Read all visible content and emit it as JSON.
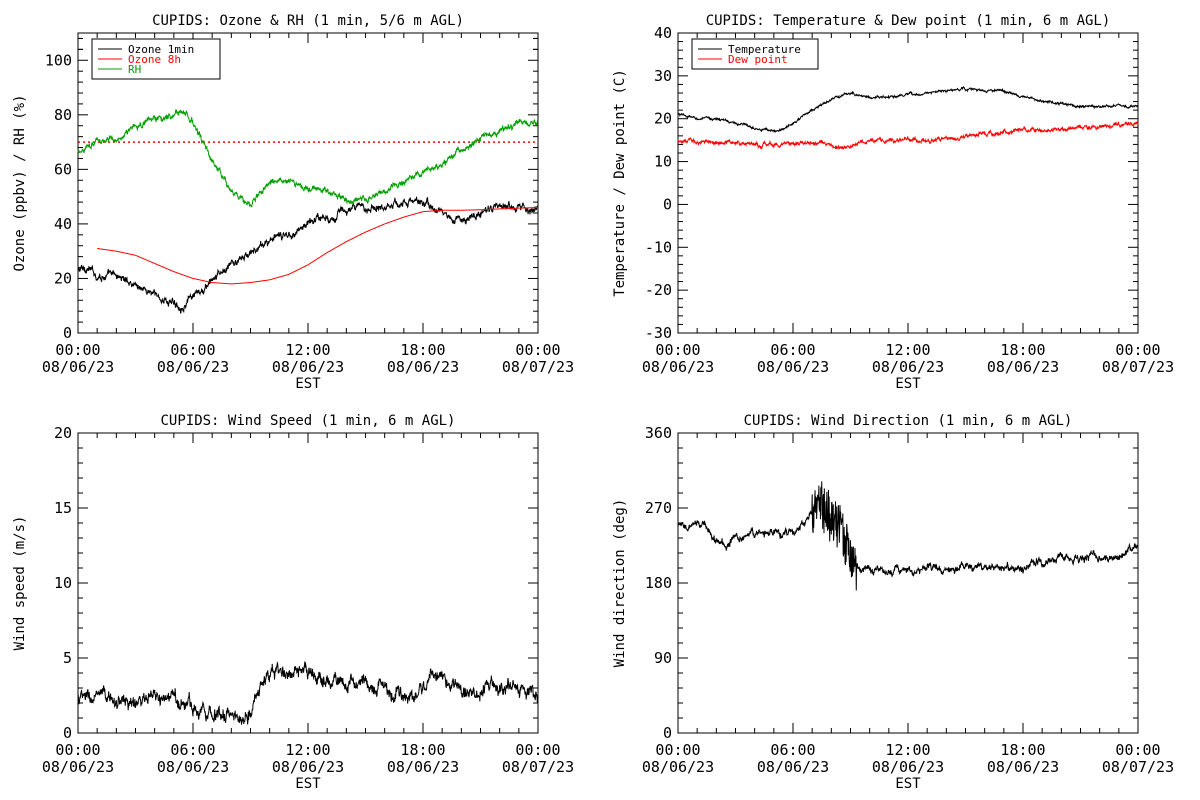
{
  "chart_data": [
    {
      "type": "line",
      "title": "CUPIDS: Ozone & RH (1 min, 5/6 m AGL)",
      "xlabel": "EST",
      "ylabel": "Ozone (ppbv) / RH (%)",
      "xlim_hours": [
        0,
        24
      ],
      "ylim": [
        0,
        110
      ],
      "yticks": [
        0,
        20,
        40,
        60,
        80,
        100
      ],
      "xtick_labels": [
        [
          "00:00",
          "08/06/23"
        ],
        [
          "06:00",
          "08/06/23"
        ],
        [
          "12:00",
          "08/06/23"
        ],
        [
          "18:00",
          "08/06/23"
        ],
        [
          "00:00",
          "08/07/23"
        ]
      ],
      "legend": [
        {
          "name": "Ozone 1min",
          "color": "#000000"
        },
        {
          "name": "Ozone 8h",
          "color": "#ff0000"
        },
        {
          "name": "RH",
          "color": "#00a000"
        }
      ],
      "reference_line": {
        "y": 70,
        "color": "#ff0000",
        "style": "dotted"
      },
      "series": [
        {
          "name": "Ozone 1min",
          "color": "#000000",
          "noise": 1.5,
          "x": [
            0,
            0.5,
            1,
            2,
            3,
            4,
            4.5,
            5,
            5.5,
            6,
            6.5,
            7,
            8,
            9,
            10,
            11,
            12,
            12.5,
            13,
            14,
            15,
            16,
            17,
            18,
            18.5,
            19,
            19.5,
            20,
            21,
            22,
            22.5,
            23,
            24
          ],
          "y": [
            23,
            24,
            21,
            21,
            18,
            14,
            12,
            11,
            10,
            13,
            15,
            19,
            25,
            29,
            34,
            36,
            40,
            43,
            42,
            45,
            46,
            47,
            48,
            48,
            46,
            44,
            42,
            41,
            44,
            46,
            47,
            47,
            45
          ]
        },
        {
          "name": "Ozone 8h",
          "color": "#ff0000",
          "noise": 0,
          "x": [
            1,
            2,
            3,
            4,
            5,
            6,
            7,
            8,
            9,
            10,
            11,
            12,
            13,
            14,
            15,
            16,
            17,
            18,
            19,
            20,
            21,
            22,
            23,
            24
          ],
          "y": [
            31,
            30,
            28.5,
            25.5,
            22.5,
            20,
            18.5,
            18,
            18.5,
            19.5,
            21.5,
            25,
            29.5,
            33.5,
            37,
            40,
            42.5,
            44.5,
            45,
            45,
            45.2,
            45.5,
            45.8,
            46
          ]
        },
        {
          "name": "RH",
          "color": "#00a000",
          "noise": 1.2,
          "x": [
            0,
            0.5,
            1,
            1.5,
            2,
            2.5,
            3,
            4,
            4.5,
            5,
            5.5,
            6,
            6.5,
            7,
            7.5,
            8,
            8.5,
            9,
            9.5,
            10,
            11,
            12,
            13,
            14,
            15,
            16,
            17,
            18,
            18.5,
            19,
            20,
            21,
            22,
            23,
            24
          ],
          "y": [
            66,
            69,
            71,
            70,
            71,
            73,
            76,
            79,
            79,
            80,
            81,
            77,
            70,
            63,
            57,
            52,
            50,
            47,
            52,
            55,
            55,
            53,
            52,
            49,
            49,
            52,
            55,
            58,
            60,
            62,
            67,
            71,
            74,
            77,
            77
          ]
        }
      ]
    },
    {
      "type": "line",
      "title": "CUPIDS: Temperature & Dew point (1 min, 6 m AGL)",
      "xlabel": "EST",
      "ylabel": "Temperature / Dew point (C)",
      "xlim_hours": [
        0,
        24
      ],
      "ylim": [
        -30,
        40
      ],
      "yticks": [
        -30,
        -20,
        -10,
        0,
        10,
        20,
        30,
        40
      ],
      "xtick_labels": [
        [
          "00:00",
          "08/06/23"
        ],
        [
          "06:00",
          "08/06/23"
        ],
        [
          "12:00",
          "08/06/23"
        ],
        [
          "18:00",
          "08/06/23"
        ],
        [
          "00:00",
          "08/07/23"
        ]
      ],
      "legend": [
        {
          "name": "Temperature",
          "color": "#000000"
        },
        {
          "name": "Dew point",
          "color": "#ff0000"
        }
      ],
      "series": [
        {
          "name": "Temperature",
          "color": "#000000",
          "noise": 0.3,
          "x": [
            0,
            1,
            2,
            3,
            4,
            5,
            5.5,
            6,
            7,
            8,
            9,
            9.5,
            10,
            11,
            12,
            13,
            14,
            15,
            16,
            17,
            18,
            19,
            20,
            21,
            22,
            23,
            24
          ],
          "y": [
            21,
            20,
            20,
            19,
            18,
            17,
            17.5,
            19,
            22,
            24.5,
            26,
            25.5,
            25,
            25,
            25.5,
            26,
            26.5,
            27,
            26.5,
            26.5,
            25,
            24,
            23.5,
            23,
            23,
            23,
            23
          ]
        },
        {
          "name": "Dew point",
          "color": "#ff0000",
          "noise": 0.5,
          "x": [
            0,
            1,
            2,
            3,
            4,
            5,
            6,
            7,
            8,
            8.5,
            9,
            9.5,
            10,
            11,
            12,
            13,
            14,
            15,
            16,
            17,
            18,
            19,
            20,
            21,
            22,
            23,
            24
          ],
          "y": [
            15,
            14.5,
            14.5,
            14.5,
            14,
            14,
            14,
            14.5,
            14,
            13,
            13.5,
            14.5,
            15,
            15,
            15,
            15,
            15.5,
            16,
            16.5,
            17,
            17.5,
            17,
            17.5,
            18,
            18,
            18.5,
            18.7
          ]
        }
      ]
    },
    {
      "type": "line",
      "title": "CUPIDS: Wind Speed (1 min, 6 m AGL)",
      "xlabel": "EST",
      "ylabel": "Wind speed (m/s)",
      "xlim_hours": [
        0,
        24
      ],
      "ylim": [
        0,
        20
      ],
      "yticks": [
        0,
        5,
        10,
        15,
        20
      ],
      "xtick_labels": [
        [
          "00:00",
          "08/06/23"
        ],
        [
          "06:00",
          "08/06/23"
        ],
        [
          "12:00",
          "08/06/23"
        ],
        [
          "18:00",
          "08/06/23"
        ],
        [
          "00:00",
          "08/07/23"
        ]
      ],
      "series": [
        {
          "name": "",
          "color": "#000000",
          "noise": 0.5,
          "x": [
            0,
            1,
            2,
            3,
            4,
            5,
            6,
            6.5,
            7,
            7.5,
            8,
            8.5,
            9,
            9.5,
            10,
            11,
            12,
            13,
            14,
            15,
            16,
            16.5,
            17,
            17.5,
            18,
            18.5,
            19,
            20,
            21,
            22,
            23,
            23.5,
            24
          ],
          "y": [
            2.3,
            2.3,
            2.2,
            2,
            2.2,
            2.3,
            1.8,
            1.6,
            1.5,
            1.3,
            1.1,
            1,
            1.5,
            3,
            4,
            4,
            3.8,
            3.6,
            3.3,
            3.3,
            3,
            2.5,
            2.3,
            2.3,
            3.2,
            4,
            3.6,
            2.8,
            2.7,
            3.1,
            3.1,
            3,
            2.3
          ]
        }
      ]
    },
    {
      "type": "line",
      "title": "CUPIDS: Wind Direction (1 min, 6 m AGL)",
      "xlabel": "EST",
      "ylabel": "Wind direction (deg)",
      "xlim_hours": [
        0,
        24
      ],
      "ylim": [
        0,
        360
      ],
      "yticks": [
        0,
        90,
        180,
        270,
        360
      ],
      "xtick_labels": [
        [
          "00:00",
          "08/06/23"
        ],
        [
          "06:00",
          "08/06/23"
        ],
        [
          "12:00",
          "08/06/23"
        ],
        [
          "18:00",
          "08/06/23"
        ],
        [
          "00:00",
          "08/07/23"
        ]
      ],
      "series": [
        {
          "name": "",
          "color": "#000000",
          "noise": 5,
          "x": [
            0,
            0.5,
            1,
            1.5,
            2,
            2.5,
            3,
            4,
            5,
            6,
            6.5,
            7,
            7.5,
            8,
            8.5,
            9,
            9.5,
            10,
            11,
            12,
            13,
            14,
            15,
            16,
            17,
            18,
            19,
            20,
            21,
            22,
            23,
            24
          ],
          "y": [
            247,
            245,
            250,
            248,
            232,
            225,
            235,
            240,
            240,
            240,
            248,
            262,
            275,
            255,
            240,
            215,
            198,
            195,
            195,
            196,
            198,
            197,
            198,
            199,
            200,
            198,
            205,
            210,
            210,
            212,
            210,
            225
          ],
          "extra_noise_window": [
            7,
            9.3,
            30
          ]
        }
      ]
    }
  ]
}
